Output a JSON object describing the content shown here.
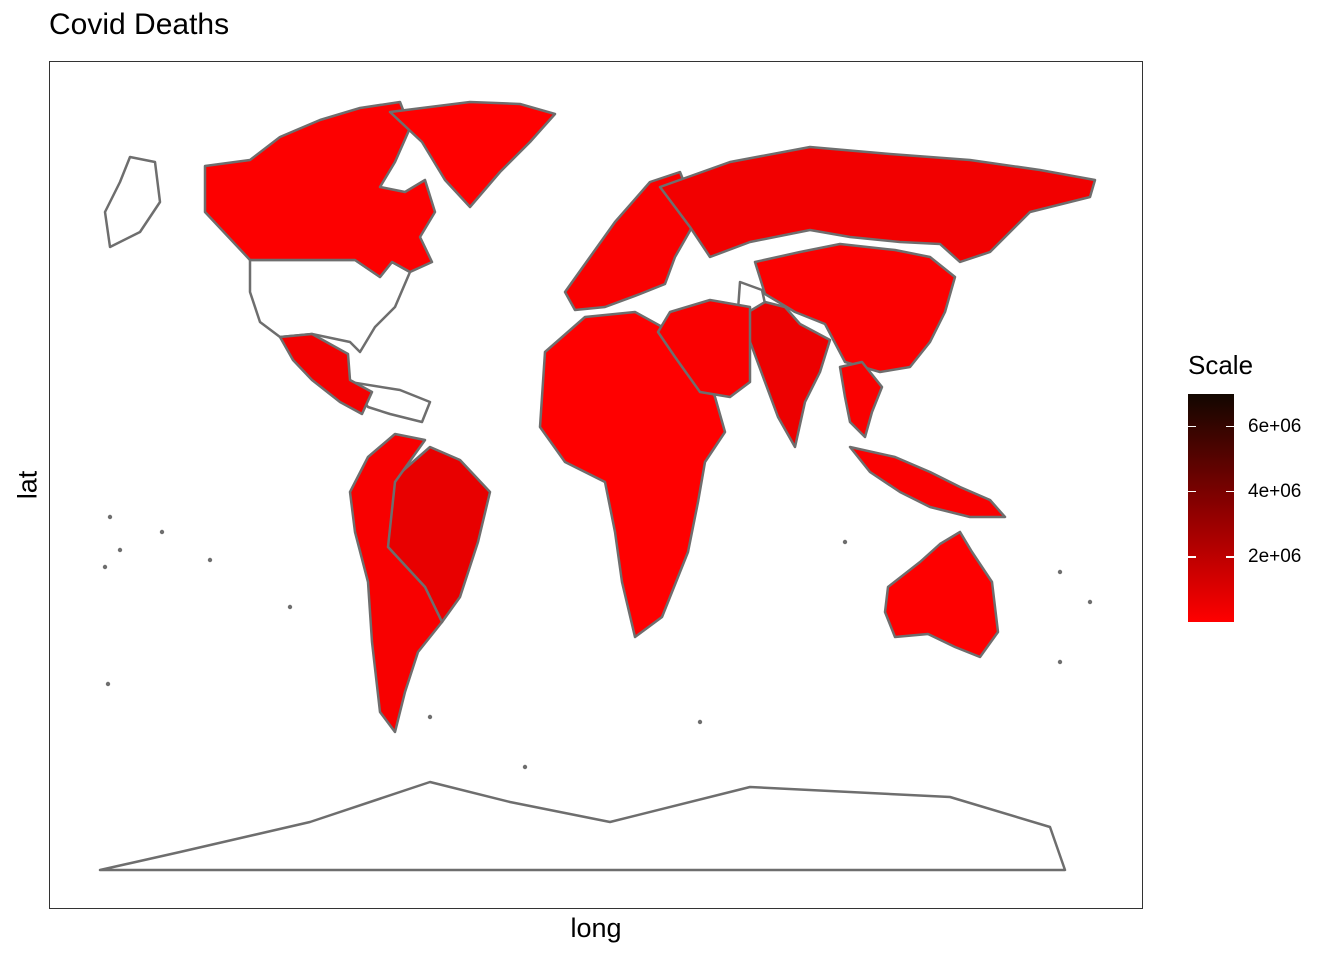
{
  "chart_data": {
    "type": "choropleth",
    "title": "Covid Deaths",
    "xlabel": "long",
    "ylabel": "lat",
    "legend": {
      "title": "Scale",
      "position": "right",
      "scale_min": 0,
      "scale_max": 7000000,
      "ticks": [
        {
          "value": 2000000,
          "label": "2e+06"
        },
        {
          "value": 4000000,
          "label": "4e+06"
        },
        {
          "value": 6000000,
          "label": "6e+06"
        }
      ],
      "color_low": "#ff0000",
      "color_mid": "#8b0000",
      "color_high": "#120700"
    },
    "regions": [
      {
        "name": "Canada",
        "value": 50000
      },
      {
        "name": "Greenland",
        "value": 0
      },
      {
        "name": "Mexico",
        "value": 330000
      },
      {
        "name": "Brazil",
        "value": 700000
      },
      {
        "name": "South America",
        "value": 200000
      },
      {
        "name": "Africa",
        "value": 10000
      },
      {
        "name": "Europe",
        "value": 150000
      },
      {
        "name": "Russia",
        "value": 400000
      },
      {
        "name": "China",
        "value": 120000
      },
      {
        "name": "India",
        "value": 530000
      },
      {
        "name": "Middle East",
        "value": 140000
      },
      {
        "name": "Southeast Asia",
        "value": 160000
      },
      {
        "name": "Australia",
        "value": 20000
      }
    ],
    "missing_regions": [
      "USA",
      "Alaska",
      "Antarctica",
      "Central America & Caribbean",
      "Angola",
      "Afghanistan"
    ],
    "grid": false
  },
  "colors": {
    "border": "#6e6e6e",
    "missing": "#ffffff"
  }
}
